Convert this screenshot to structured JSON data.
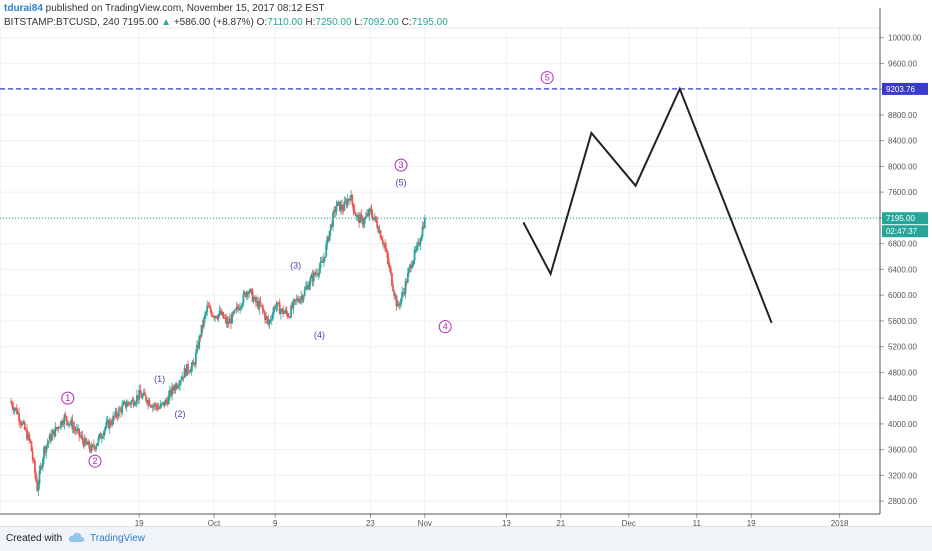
{
  "header": {
    "line1_user": "tdurai84",
    "line1_rest": " published on TradingView.com, November 15, 2017 08:12 EST",
    "symbol": "BITSTAMP:BTCUSD, 240",
    "last": "7195.00",
    "change": "+586.00 (+8.87%)",
    "o_label": "O:",
    "o_value": "7110.00",
    "h_label": "H:",
    "h_value": "7250.00",
    "l_label": "L:",
    "l_value": "7092.00",
    "c_label": "C:",
    "c_value": "7195.00"
  },
  "footer": {
    "created_with": "Created with",
    "brand": "TradingView"
  },
  "colors": {
    "up": "#26a69a",
    "down": "#ef5350",
    "wave": "#b02bb4",
    "subwave": "#4a3fa6",
    "target": "#3a3ad0",
    "path": "#222222"
  },
  "chart_data": {
    "type": "candlestick",
    "symbol": "BITSTAMP:BTCUSD",
    "interval": "240",
    "ylim": [
      2600,
      10150
    ],
    "y_ticks": [
      "10000.00",
      "9600.00",
      "9200.00",
      "8800.00",
      "8400.00",
      "8000.00",
      "7600.00",
      "7200.00",
      "6800.00",
      "6400.00",
      "6000.00",
      "5600.00",
      "5200.00",
      "4800.00",
      "4400.00",
      "4000.00",
      "3600.00",
      "3200.00",
      "2800.00"
    ],
    "x_ticks": [
      {
        "label": "19",
        "day": 19
      },
      {
        "label": "Oct",
        "day": 30
      },
      {
        "label": "9",
        "day": 39
      },
      {
        "label": "23",
        "day": 53
      },
      {
        "label": "Nov",
        "day": 61
      },
      {
        "label": "13",
        "day": 73
      },
      {
        "label": "21",
        "day": 81
      },
      {
        "label": "Dec",
        "day": 91
      },
      {
        "label": "11",
        "day": 101
      },
      {
        "label": "19",
        "day": 109
      },
      {
        "label": "2018",
        "day": 122
      }
    ],
    "price_path": [
      [
        0,
        4350
      ],
      [
        1,
        4200
      ],
      [
        2,
        3950
      ],
      [
        3,
        3700
      ],
      [
        4,
        3000
      ],
      [
        5,
        3600
      ],
      [
        6,
        3800
      ],
      [
        7,
        3950
      ],
      [
        8,
        4100
      ],
      [
        9,
        4000
      ],
      [
        10,
        3850
      ],
      [
        11,
        3700
      ],
      [
        12,
        3600
      ],
      [
        13,
        3750
      ],
      [
        14,
        3950
      ],
      [
        15,
        4050
      ],
      [
        16,
        4200
      ],
      [
        17,
        4300
      ],
      [
        18,
        4350
      ],
      [
        19,
        4450
      ],
      [
        20,
        4400
      ],
      [
        21,
        4300
      ],
      [
        22,
        4250
      ],
      [
        23,
        4350
      ],
      [
        24,
        4550
      ],
      [
        25,
        4700
      ],
      [
        26,
        4850
      ],
      [
        27,
        4900
      ],
      [
        28,
        5400
      ],
      [
        29,
        5800
      ],
      [
        30,
        5700
      ],
      [
        31,
        5700
      ],
      [
        32,
        5550
      ],
      [
        33,
        5700
      ],
      [
        34,
        5900
      ],
      [
        35,
        6100
      ],
      [
        36,
        5900
      ],
      [
        37,
        5800
      ],
      [
        38,
        5550
      ],
      [
        39,
        5850
      ],
      [
        40,
        5750
      ],
      [
        41,
        5700
      ],
      [
        42,
        5900
      ],
      [
        43,
        6000
      ],
      [
        44,
        6200
      ],
      [
        45,
        6350
      ],
      [
        46,
        6500
      ],
      [
        47,
        7000
      ],
      [
        48,
        7400
      ],
      [
        49,
        7350
      ],
      [
        50,
        7550
      ],
      [
        51,
        7200
      ],
      [
        52,
        7150
      ],
      [
        53,
        7300
      ],
      [
        54,
        7100
      ],
      [
        55,
        6800
      ],
      [
        56,
        6300
      ],
      [
        57,
        5800
      ],
      [
        58,
        6100
      ],
      [
        59,
        6500
      ],
      [
        60,
        6750
      ],
      [
        61,
        7195
      ]
    ],
    "price_anchor_days": [
      0,
      61
    ],
    "last_price": 7195.0,
    "last_label": "7195.00",
    "countdown": "02:47:37",
    "target_level": 9203.76,
    "target_label": "9203.76",
    "projection": [
      {
        "day": 75.5,
        "price": 7130
      },
      {
        "day": 79.5,
        "price": 6330
      },
      {
        "day": 85.5,
        "price": 8520
      },
      {
        "day": 92,
        "price": 7700
      },
      {
        "day": 98.5,
        "price": 9203.76
      },
      {
        "day": 112,
        "price": 5570
      }
    ],
    "waves": [
      {
        "label": "1",
        "day": 8.5,
        "price": 4400,
        "kind": "major"
      },
      {
        "label": "2",
        "day": 12.5,
        "price": 3420,
        "kind": "major"
      },
      {
        "label": "3",
        "day": 57.5,
        "price": 8020,
        "kind": "major"
      },
      {
        "label": "4",
        "day": 64,
        "price": 5510,
        "kind": "major"
      },
      {
        "label": "5",
        "day": 79,
        "price": 9380,
        "kind": "major"
      },
      {
        "label": "(1)",
        "day": 22,
        "price": 4700,
        "kind": "sub"
      },
      {
        "label": "(2)",
        "day": 25,
        "price": 4150,
        "kind": "sub"
      },
      {
        "label": "(3)",
        "day": 42,
        "price": 6460,
        "kind": "sub"
      },
      {
        "label": "(4)",
        "day": 45.5,
        "price": 5380,
        "kind": "sub"
      },
      {
        "label": "(5)",
        "day": 57.5,
        "price": 7750,
        "kind": "sub"
      }
    ]
  }
}
